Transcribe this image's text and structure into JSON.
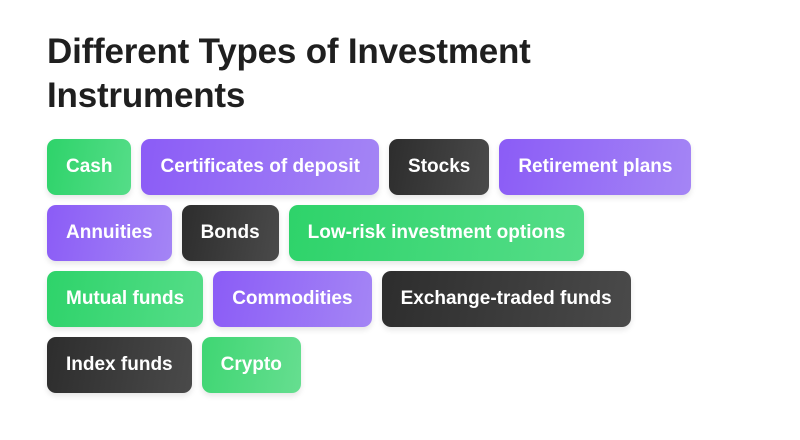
{
  "title": "Different Types of Investment Instruments",
  "rows": [
    [
      {
        "label": "Cash",
        "style": "green"
      },
      {
        "label": "Certificates of deposit",
        "style": "purple"
      },
      {
        "label": "Stocks",
        "style": "dark"
      },
      {
        "label": "Retirement plans",
        "style": "purple"
      }
    ],
    [
      {
        "label": "Annuities",
        "style": "purple"
      },
      {
        "label": "Bonds",
        "style": "dark"
      },
      {
        "label": "Low-risk investment options",
        "style": "green"
      }
    ],
    [
      {
        "label": "Mutual funds",
        "style": "green"
      },
      {
        "label": "Commodities",
        "style": "purple"
      },
      {
        "label": "Exchange-traded funds",
        "style": "dark"
      }
    ],
    [
      {
        "label": "Index funds",
        "style": "dark"
      },
      {
        "label": "Crypto",
        "style": "green2"
      }
    ]
  ],
  "colors": {
    "green": "#2ed36a",
    "purple": "#8b5cf6",
    "dark": "#2d2d2d",
    "title": "#1f1f1f"
  }
}
